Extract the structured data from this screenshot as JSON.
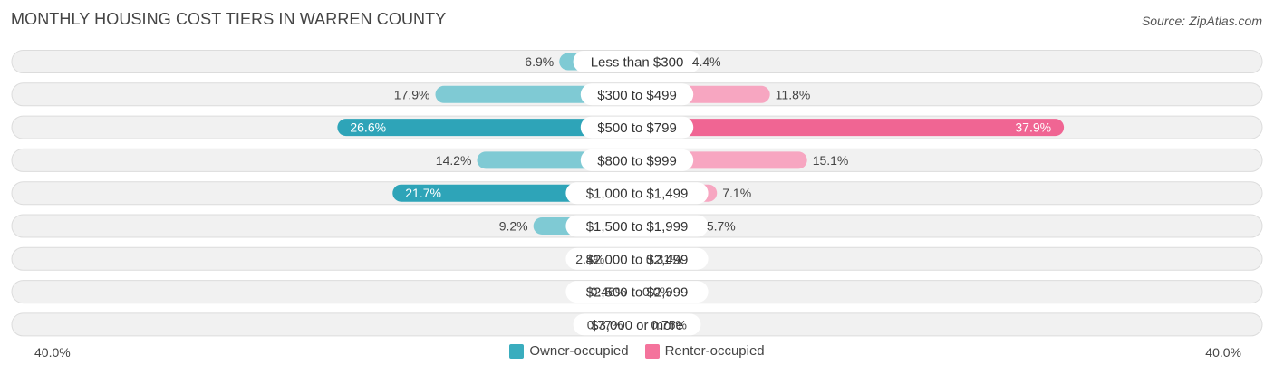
{
  "title": "MONTHLY HOUSING COST TIERS IN WARREN COUNTY",
  "source": "Source: ZipAtlas.com",
  "axis": {
    "left_label": "40.0%",
    "right_label": "40.0%"
  },
  "legend": {
    "owner": {
      "label": "Owner-occupied",
      "color": "#3aadbe"
    },
    "renter": {
      "label": "Renter-occupied",
      "color": "#f4739c"
    }
  },
  "chart_data": {
    "type": "bar",
    "orientation": "horizontal-diverging",
    "max": 40.0,
    "categories": [
      "Less than $300",
      "$300 to $499",
      "$500 to $799",
      "$800 to $999",
      "$1,000 to $1,499",
      "$1,500 to $1,999",
      "$2,000 to $2,499",
      "$2,500 to $2,999",
      "$3,000 or more"
    ],
    "series": [
      {
        "name": "Owner-occupied",
        "values": [
          6.9,
          17.9,
          26.6,
          14.2,
          21.7,
          9.2,
          2.4,
          0.46,
          0.77
        ],
        "labels": [
          "6.9%",
          "17.9%",
          "26.6%",
          "14.2%",
          "21.7%",
          "9.2%",
          "2.4%",
          "0.46%",
          "0.77%"
        ]
      },
      {
        "name": "Renter-occupied",
        "values": [
          4.4,
          11.8,
          37.9,
          15.1,
          7.1,
          5.7,
          0.31,
          0.0,
          0.75
        ],
        "labels": [
          "4.4%",
          "11.8%",
          "37.9%",
          "15.1%",
          "7.1%",
          "5.7%",
          "0.31%",
          "0.0%",
          "0.75%"
        ]
      }
    ],
    "colors": {
      "owner_light": "#7fcad4",
      "owner_strong": "#2ea4b8",
      "renter_light": "#f7a6c1",
      "renter_strong": "#f06593"
    }
  }
}
